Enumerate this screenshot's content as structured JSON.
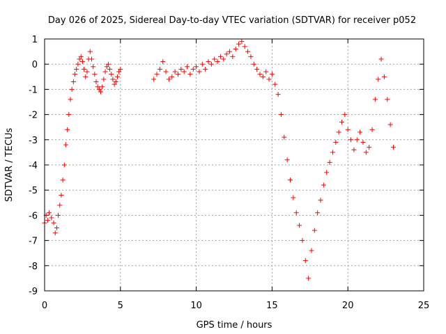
{
  "chart_data": {
    "type": "scatter",
    "title": "Day 026 of 2025, Sidereal Day-to-day VTEC variation (SDTVAR) for receiver p052",
    "xlabel": "GPS time / hours",
    "ylabel": "SDTVAR / TECUs",
    "xlim": [
      0,
      25
    ],
    "ylim": [
      -9,
      1
    ],
    "xticks": [
      "0",
      "5",
      "10",
      "15",
      "20",
      "25"
    ],
    "yticks": [
      "1",
      "0",
      "-1",
      "-2",
      "-3",
      "-4",
      "-5",
      "-6",
      "-7",
      "-8",
      "-9"
    ],
    "grid": true,
    "marker": "+",
    "color": "#ff0000",
    "series": [
      {
        "name": "SDTVAR",
        "x": [
          0,
          0.1,
          0.2,
          0.3,
          0.45,
          0.6,
          0.7,
          0.8,
          0.9,
          1.0,
          1.1,
          1.2,
          1.3,
          1.4,
          1.5,
          1.6,
          1.7,
          1.8,
          1.9,
          2.0,
          2.1,
          2.2,
          2.3,
          2.4,
          2.5,
          2.6,
          2.7,
          2.8,
          2.9,
          3.0,
          3.1,
          3.2,
          3.3,
          3.4,
          3.5,
          3.6,
          3.7,
          3.8,
          3.9,
          4.0,
          4.1,
          4.2,
          4.3,
          4.4,
          4.5,
          4.6,
          4.7,
          4.8,
          4.9,
          5.0,
          7.2,
          7.4,
          7.6,
          7.8,
          8.0,
          8.2,
          8.4,
          8.6,
          8.8,
          9.0,
          9.2,
          9.4,
          9.6,
          9.8,
          10.0,
          10.2,
          10.4,
          10.6,
          10.8,
          11.0,
          11.2,
          11.4,
          11.6,
          11.8,
          12.0,
          12.2,
          12.4,
          12.6,
          12.8,
          13.0,
          13.2,
          13.4,
          13.6,
          13.8,
          14.0,
          14.2,
          14.4,
          14.6,
          14.8,
          15.0,
          15.2,
          15.4,
          15.6,
          15.8,
          16.0,
          16.2,
          16.4,
          16.6,
          16.8,
          17.0,
          17.2,
          17.4,
          17.6,
          17.8,
          18.0,
          18.2,
          18.4,
          18.6,
          18.8,
          19.0,
          19.2,
          19.4,
          19.6,
          19.8,
          20.0,
          20.2,
          20.4,
          20.6,
          20.8,
          21.0,
          21.2,
          21.4,
          21.6,
          21.8,
          22.0,
          22.2,
          22.4,
          22.6,
          22.8,
          23.0
        ],
        "y": [
          -6.3,
          -6.0,
          -6.2,
          -5.9,
          -6.1,
          -6.3,
          -6.7,
          -6.5,
          -6.0,
          -5.6,
          -5.2,
          -4.6,
          -4.0,
          -3.2,
          -2.6,
          -2.0,
          -1.4,
          -1.0,
          -0.7,
          -0.4,
          -0.2,
          0.0,
          0.2,
          0.3,
          0.1,
          -0.2,
          -0.5,
          -0.3,
          0.2,
          0.5,
          0.2,
          -0.1,
          -0.4,
          -0.7,
          -0.9,
          -1.0,
          -1.1,
          -0.9,
          -0.6,
          -0.3,
          -0.1,
          0.0,
          -0.2,
          -0.4,
          -0.6,
          -0.8,
          -0.7,
          -0.5,
          -0.3,
          -0.2,
          -0.6,
          -0.4,
          -0.2,
          0.1,
          -0.3,
          -0.6,
          -0.5,
          -0.3,
          -0.4,
          -0.2,
          -0.3,
          -0.1,
          -0.4,
          -0.2,
          -0.1,
          -0.3,
          0.0,
          -0.2,
          0.1,
          0.0,
          0.2,
          0.1,
          0.3,
          0.2,
          0.4,
          0.5,
          0.3,
          0.6,
          0.8,
          0.9,
          0.7,
          0.5,
          0.3,
          0.0,
          -0.2,
          -0.4,
          -0.5,
          -0.3,
          -0.6,
          -0.4,
          -0.8,
          -1.2,
          -2.0,
          -2.9,
          -3.8,
          -4.6,
          -5.3,
          -5.9,
          -6.4,
          -7.0,
          -7.8,
          -8.5,
          -7.4,
          -6.6,
          -5.9,
          -5.4,
          -4.8,
          -4.3,
          -3.9,
          -3.5,
          -3.1,
          -2.7,
          -2.3,
          -2.0,
          -2.6,
          -3.0,
          -3.4,
          -3.0,
          -2.7,
          -3.1,
          -3.5,
          -3.3,
          -2.6,
          -1.4,
          -0.6,
          0.2,
          -0.5,
          -1.4,
          -2.4,
          -3.3
        ]
      }
    ]
  }
}
